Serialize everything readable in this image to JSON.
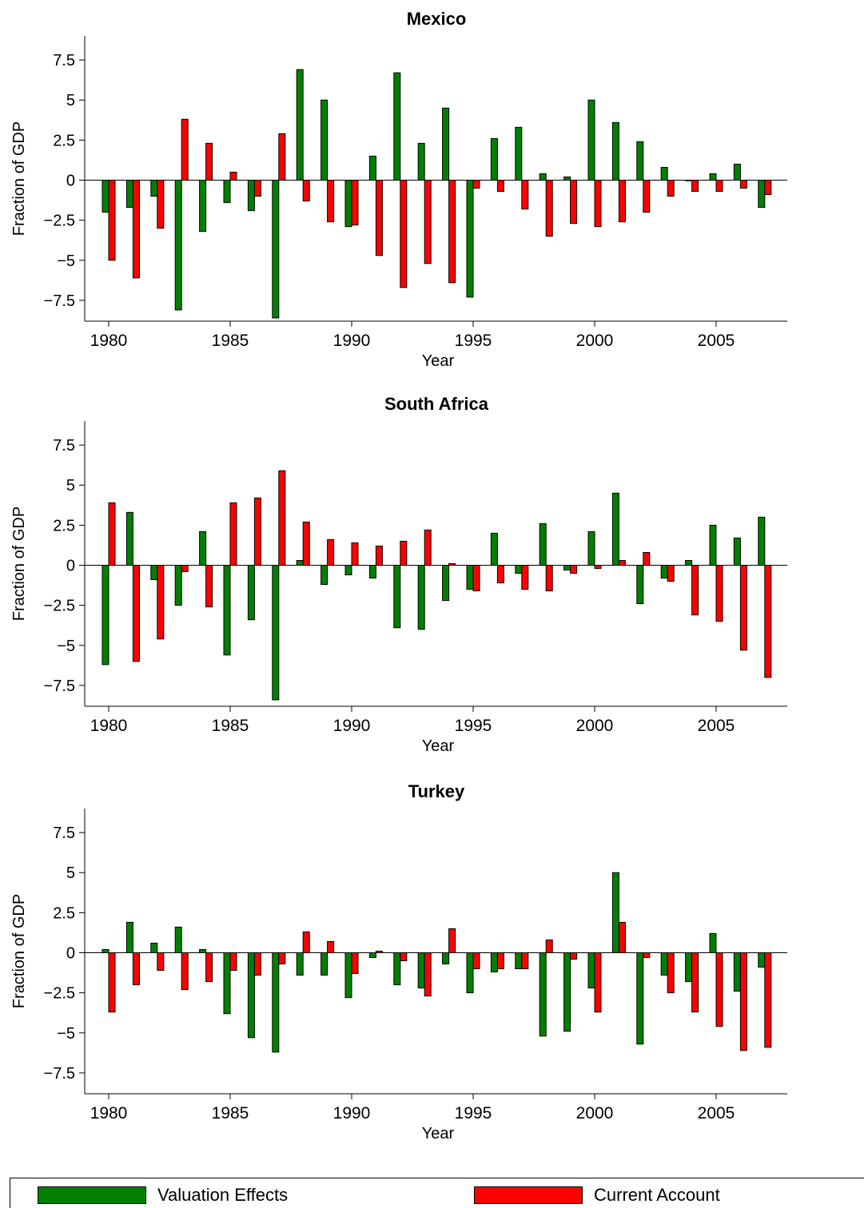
{
  "colors": {
    "valuation": "#008000",
    "current_account": "#ff0000"
  },
  "legend": [
    {
      "label": "Valuation Effects",
      "color": "#008000"
    },
    {
      "label": "Current Account",
      "color": "#ff0000"
    }
  ],
  "chart_data": [
    {
      "type": "bar",
      "title": "Mexico",
      "xlabel": "Year",
      "ylabel": "Fraction of GDP",
      "ylim": [
        -8.8,
        9.0
      ],
      "yticks": [
        -7.5,
        -5,
        -2.5,
        0,
        2.5,
        5,
        7.5
      ],
      "ytick_labels": [
        "−7.5",
        "−5",
        "−2.5",
        "0",
        "2.5",
        "5",
        "7.5"
      ],
      "xticks": [
        "1980",
        "1985",
        "1990",
        "1995",
        "2000",
        "2005"
      ],
      "categories": [
        1980,
        1981,
        1982,
        1983,
        1984,
        1985,
        1986,
        1987,
        1988,
        1989,
        1990,
        1991,
        1992,
        1993,
        1994,
        1995,
        1996,
        1997,
        1998,
        1999,
        2000,
        2001,
        2002,
        2003,
        2004,
        2005,
        2006,
        2007
      ],
      "series": [
        {
          "name": "Valuation Effects",
          "values": [
            -2.0,
            -1.7,
            -1.0,
            -8.1,
            -3.2,
            -1.4,
            -1.9,
            -8.6,
            6.9,
            5.0,
            -2.9,
            1.5,
            6.7,
            2.3,
            4.5,
            -7.3,
            2.6,
            3.3,
            0.4,
            0.2,
            5.0,
            3.6,
            2.4,
            0.8,
            0.0,
            0.4,
            1.0,
            -1.7
          ]
        },
        {
          "name": "Current Account",
          "values": [
            -5.0,
            -6.1,
            -3.0,
            3.8,
            2.3,
            0.5,
            -1.0,
            2.9,
            -1.3,
            -2.6,
            -2.8,
            -4.7,
            -6.7,
            -5.2,
            -6.4,
            -0.5,
            -0.7,
            -1.8,
            -3.5,
            -2.7,
            -2.9,
            -2.6,
            -2.0,
            -1.0,
            -0.7,
            -0.7,
            -0.5,
            -0.9
          ]
        }
      ]
    },
    {
      "type": "bar",
      "title": "South Africa",
      "xlabel": "Year",
      "ylabel": "Fraction of GDP",
      "ylim": [
        -8.8,
        9.0
      ],
      "yticks": [
        -7.5,
        -5,
        -2.5,
        0,
        2.5,
        5,
        7.5
      ],
      "ytick_labels": [
        "−7.5",
        "−5",
        "−2.5",
        "0",
        "2.5",
        "5",
        "7.5"
      ],
      "xticks": [
        "1980",
        "1985",
        "1990",
        "1995",
        "2000",
        "2005"
      ],
      "categories": [
        1980,
        1981,
        1982,
        1983,
        1984,
        1985,
        1986,
        1987,
        1988,
        1989,
        1990,
        1991,
        1992,
        1993,
        1994,
        1995,
        1996,
        1997,
        1998,
        1999,
        2000,
        2001,
        2002,
        2003,
        2004,
        2005,
        2006,
        2007
      ],
      "series": [
        {
          "name": "Valuation Effects",
          "values": [
            -6.2,
            3.3,
            -0.9,
            -2.5,
            2.1,
            -5.6,
            -3.4,
            -8.4,
            0.3,
            -1.2,
            -0.6,
            -0.8,
            -3.9,
            -4.0,
            -2.2,
            -1.5,
            2.0,
            -0.5,
            2.6,
            -0.3,
            2.1,
            4.5,
            -2.4,
            -0.8,
            0.3,
            2.5,
            1.7,
            3.0
          ]
        },
        {
          "name": "Current Account",
          "values": [
            3.9,
            -6.0,
            -4.6,
            -0.4,
            -2.6,
            3.9,
            4.2,
            5.9,
            2.7,
            1.6,
            1.4,
            1.2,
            1.5,
            2.2,
            0.1,
            -1.6,
            -1.1,
            -1.5,
            -1.6,
            -0.5,
            -0.2,
            0.3,
            0.8,
            -1.0,
            -3.1,
            -3.5,
            -5.3,
            -7.0
          ]
        }
      ]
    },
    {
      "type": "bar",
      "title": "Turkey",
      "xlabel": "Year",
      "ylabel": "Fraction of GDP",
      "ylim": [
        -8.8,
        9.0
      ],
      "yticks": [
        -7.5,
        -5,
        -2.5,
        0,
        2.5,
        5,
        7.5
      ],
      "ytick_labels": [
        "−7.5",
        "−5",
        "−2.5",
        "0",
        "2.5",
        "5",
        "7.5"
      ],
      "xticks": [
        "1980",
        "1985",
        "1990",
        "1995",
        "2000",
        "2005"
      ],
      "categories": [
        1980,
        1981,
        1982,
        1983,
        1984,
        1985,
        1986,
        1987,
        1988,
        1989,
        1990,
        1991,
        1992,
        1993,
        1994,
        1995,
        1996,
        1997,
        1998,
        1999,
        2000,
        2001,
        2002,
        2003,
        2004,
        2005,
        2006,
        2007
      ],
      "series": [
        {
          "name": "Valuation Effects",
          "values": [
            0.2,
            1.9,
            0.6,
            1.6,
            0.2,
            -3.8,
            -5.3,
            -6.2,
            -1.4,
            -1.4,
            -2.8,
            -0.3,
            -2.0,
            -2.2,
            -0.7,
            -2.5,
            -1.2,
            -1.0,
            -5.2,
            -4.9,
            -2.2,
            5.0,
            -5.7,
            -1.4,
            -1.8,
            1.2,
            -2.4,
            -0.9
          ]
        },
        {
          "name": "Current Account",
          "values": [
            -3.7,
            -2.0,
            -1.1,
            -2.3,
            -1.8,
            -1.1,
            -1.4,
            -0.7,
            1.3,
            0.7,
            -1.3,
            0.1,
            -0.5,
            -2.7,
            1.5,
            -1.0,
            -1.0,
            -1.0,
            0.8,
            -0.4,
            -3.7,
            1.9,
            -0.3,
            -2.5,
            -3.7,
            -4.6,
            -6.1,
            -5.9
          ]
        }
      ]
    }
  ]
}
